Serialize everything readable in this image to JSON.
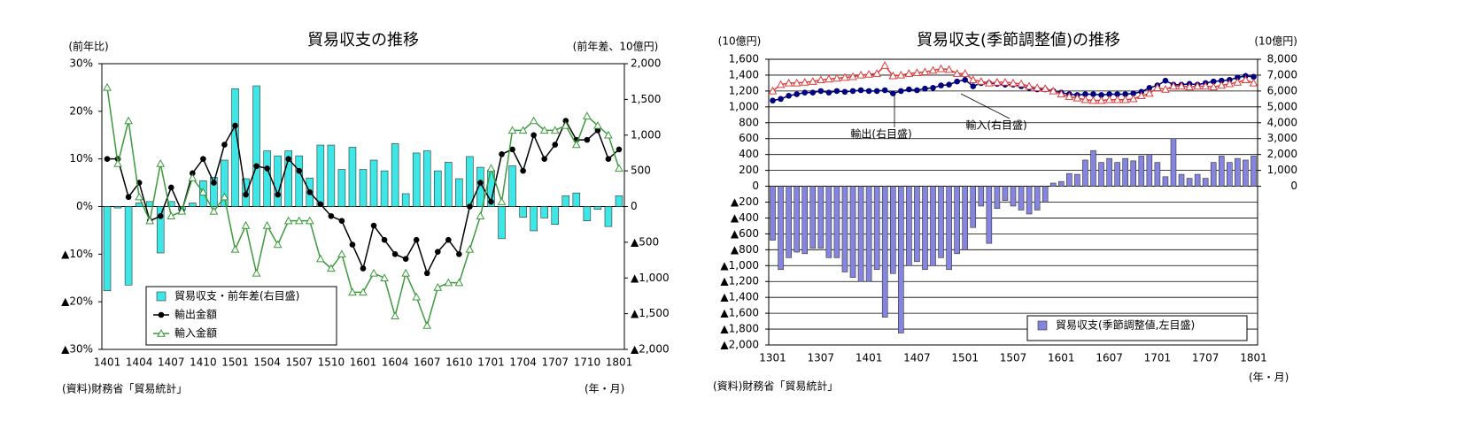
{
  "chart_data": [
    {
      "type": "combo",
      "title": "貿易収支の推移",
      "y_label": "(前年比)",
      "y2_label": "(前年差、10億円)",
      "source": "(資料)財務省「貿易統計」",
      "x_unit": "(年・月)",
      "grid": false,
      "legend": "lower left",
      "categories": [
        "1401",
        null,
        null,
        "1404",
        null,
        null,
        "1407",
        null,
        null,
        "1410",
        null,
        null,
        "1501",
        null,
        null,
        "1504",
        null,
        null,
        "1507",
        null,
        null,
        "1510",
        null,
        null,
        "1601",
        null,
        null,
        "1604",
        null,
        null,
        "1607",
        null,
        null,
        "1610",
        null,
        null,
        "1701",
        null,
        null,
        "1704",
        null,
        null,
        "1707",
        null,
        null,
        "1710",
        null,
        null,
        "1801"
      ],
      "ylim": [
        -30,
        30
      ],
      "yticks": [
        {
          "value": 30,
          "label": "30%"
        },
        {
          "value": 20,
          "label": "20%"
        },
        {
          "value": 10,
          "label": "10%"
        },
        {
          "value": 0,
          "label": "0%"
        },
        {
          "value": -10,
          "label": "▲10%"
        },
        {
          "value": -20,
          "label": "▲20%"
        },
        {
          "value": -30,
          "label": "▲30%"
        }
      ],
      "y2lim": [
        -2000,
        2000
      ],
      "y2ticks": [
        {
          "value": 2000,
          "label": "2,000"
        },
        {
          "value": 1500,
          "label": "1,500"
        },
        {
          "value": 1000,
          "label": "1,000"
        },
        500,
        0,
        {
          "value": -500,
          "label": "▲500"
        },
        {
          "value": -1000,
          "label": "▲1,000"
        },
        {
          "value": -1500,
          "label": "▲1,500"
        },
        {
          "value": -2000,
          "label": "▲2,000"
        }
      ],
      "series": [
        {
          "name": "貿易収支・前年差(右目盛)",
          "type": "bar",
          "axis": "y2",
          "color": "#3ee6e6",
          "values": [
            -1180,
            -20,
            -1100,
            50,
            70,
            -650,
            70,
            -50,
            50,
            360,
            410,
            650,
            1650,
            390,
            1690,
            780,
            710,
            780,
            710,
            400,
            860,
            860,
            520,
            830,
            520,
            650,
            500,
            880,
            180,
            750,
            780,
            500,
            620,
            390,
            700,
            550,
            510,
            -450,
            570,
            -150,
            -340,
            -160,
            -250,
            150,
            190,
            -200,
            -40,
            -280,
            150
          ]
        },
        {
          "name": "輸出金額",
          "type": "line",
          "axis": "y",
          "color": "#000000",
          "marker": "circle",
          "values": [
            10,
            10,
            2,
            5,
            -3,
            -2,
            4,
            -1,
            7,
            10,
            5,
            13,
            17,
            2.5,
            8.5,
            8,
            2.5,
            10,
            7.5,
            3,
            0.5,
            -2,
            -3,
            -8,
            -13,
            -4,
            -7,
            -10,
            -11,
            -7,
            -14,
            -9.5,
            -7,
            -10,
            0,
            5,
            1,
            11,
            12,
            7.5,
            15,
            10,
            13,
            18,
            14,
            14,
            16,
            10,
            12
          ]
        },
        {
          "name": "輸入金額",
          "type": "line",
          "axis": "y",
          "color": "#3c9a3c",
          "marker": "triangle",
          "values": [
            25,
            9,
            18,
            2,
            -3,
            9,
            -2,
            -1,
            6,
            3,
            -1,
            2,
            -9,
            -4,
            -14,
            -4,
            -8,
            -3,
            -3,
            -3,
            -11,
            -13,
            -10,
            -18,
            -18,
            -14,
            -15,
            -23,
            -14,
            -19,
            -25,
            -17,
            -16,
            -16,
            -9,
            -2,
            8,
            1,
            16,
            16,
            18,
            16,
            16,
            17,
            13,
            19,
            17,
            15,
            8
          ]
        }
      ]
    },
    {
      "type": "combo",
      "title": "貿易収支(季節調整値)の推移",
      "y_label": "(10億円)",
      "y2_label": "(10億円)",
      "source": "(資料)財務省「貿易統計」",
      "x_unit": "(年・月)",
      "grid": true,
      "legend": "lower right",
      "categories": [
        "1301",
        null,
        null,
        null,
        null,
        null,
        "1307",
        null,
        null,
        null,
        null,
        null,
        "1401",
        null,
        null,
        null,
        null,
        null,
        "1407",
        null,
        null,
        null,
        null,
        null,
        "1501",
        null,
        null,
        null,
        null,
        null,
        "1507",
        null,
        null,
        null,
        null,
        null,
        "1601",
        null,
        null,
        null,
        null,
        null,
        "1607",
        null,
        null,
        null,
        null,
        null,
        "1701",
        null,
        null,
        null,
        null,
        null,
        "1707",
        null,
        null,
        null,
        null,
        null,
        "1801"
      ],
      "ylim": [
        -2000,
        1600
      ],
      "yticks": [
        {
          "value": 1600,
          "label": "1,600"
        },
        {
          "value": 1400,
          "label": "1,400"
        },
        {
          "value": 1200,
          "label": "1,200"
        },
        {
          "value": 1000,
          "label": "1,000"
        },
        800,
        600,
        400,
        200,
        0,
        {
          "value": -200,
          "label": "▲200"
        },
        {
          "value": -400,
          "label": "▲400"
        },
        {
          "value": -600,
          "label": "▲600"
        },
        {
          "value": -800,
          "label": "▲800"
        },
        {
          "value": -1000,
          "label": "▲1,000"
        },
        {
          "value": -1200,
          "label": "▲1,200"
        },
        {
          "value": -1400,
          "label": "▲1,400"
        },
        {
          "value": -1600,
          "label": "▲1,600"
        },
        {
          "value": -1800,
          "label": "▲1,800"
        },
        {
          "value": -2000,
          "label": "▲2,000"
        }
      ],
      "y2lim": [
        -10000,
        8000
      ],
      "y2ticks": [
        {
          "value": 8000,
          "label": "8,000"
        },
        {
          "value": 7000,
          "label": "7,000"
        },
        {
          "value": 6000,
          "label": "6,000"
        },
        {
          "value": 5000,
          "label": "5,000"
        },
        {
          "value": 4000,
          "label": "4,000"
        },
        {
          "value": 3000,
          "label": "3,000"
        },
        {
          "value": 2000,
          "label": "2,000"
        },
        {
          "value": 1000,
          "label": "1,000"
        },
        0
      ],
      "series": [
        {
          "name": "貿易収支(季節調整値,左目盛)",
          "type": "bar",
          "axis": "y",
          "color": "#8585e0",
          "values": [
            -680,
            -1050,
            -900,
            -830,
            -850,
            -780,
            -780,
            -900,
            -900,
            -1080,
            -1150,
            -1200,
            -1200,
            -1050,
            -1650,
            -1100,
            -1850,
            -1000,
            -950,
            -1050,
            -1000,
            -900,
            -1050,
            -850,
            -800,
            -520,
            -250,
            -720,
            -280,
            -180,
            -250,
            -300,
            -350,
            -300,
            -200,
            40,
            60,
            160,
            150,
            330,
            450,
            300,
            350,
            300,
            350,
            320,
            380,
            400,
            300,
            120,
            600,
            150,
            100,
            150,
            100,
            300,
            380,
            300,
            350,
            330,
            380
          ]
        },
        {
          "name": "輸出(右目盛)",
          "type": "line",
          "axis": "y2",
          "color": "#000080",
          "marker": "circle",
          "label_inline": true,
          "values": [
            5400,
            5500,
            5700,
            5800,
            5900,
            5900,
            6000,
            5900,
            6000,
            5950,
            6000,
            6050,
            6000,
            6000,
            6050,
            5850,
            6000,
            6100,
            6050,
            6150,
            6200,
            6350,
            6400,
            6600,
            6700,
            6300,
            6500,
            6500,
            6450,
            6400,
            6400,
            6300,
            6200,
            6100,
            6100,
            6000,
            5900,
            5800,
            5750,
            5800,
            5800,
            5750,
            5800,
            5800,
            5800,
            5850,
            5950,
            6200,
            6350,
            6650,
            6400,
            6400,
            6450,
            6400,
            6500,
            6600,
            6650,
            6700,
            6850,
            6950,
            6900
          ]
        },
        {
          "name": "輸入(右目盛)",
          "type": "line",
          "axis": "y2",
          "color": "#e03c3c",
          "marker": "triangle",
          "label_inline": true,
          "values": [
            6000,
            6400,
            6500,
            6500,
            6550,
            6600,
            6700,
            6750,
            6800,
            6850,
            6900,
            7000,
            7050,
            7100,
            7600,
            6950,
            7000,
            7100,
            7150,
            7200,
            7300,
            7400,
            7350,
            7100,
            7100,
            6700,
            6600,
            6500,
            6550,
            6550,
            6500,
            6450,
            6300,
            6200,
            6150,
            6000,
            5800,
            5650,
            5550,
            5450,
            5400,
            5400,
            5450,
            5450,
            5450,
            5500,
            5700,
            5850,
            6200,
            6100,
            6300,
            6300,
            6250,
            6300,
            6300,
            6250,
            6350,
            6450,
            6550,
            6700,
            6500
          ]
        }
      ]
    }
  ]
}
